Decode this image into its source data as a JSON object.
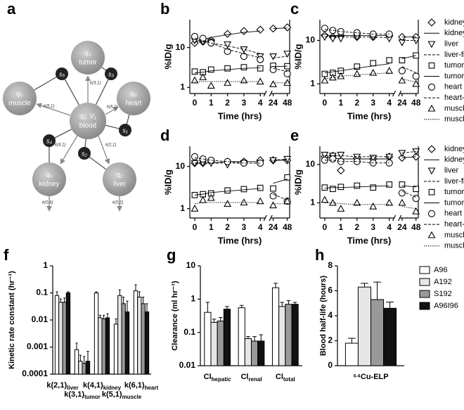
{
  "diagram": {
    "panel": "a",
    "blood": {
      "label": "q₁, V₁",
      "name": "blood"
    },
    "nodes": [
      {
        "label": "q₃",
        "name": "tumor"
      },
      {
        "label": "q₆",
        "name": "heart"
      },
      {
        "label": "q₂",
        "name": "liver"
      },
      {
        "label": "q₄",
        "name": "kidney"
      },
      {
        "label": "q₅",
        "name": "muscle"
      }
    ],
    "switches": [
      "s₃",
      "s₁",
      "s₂",
      "s₄",
      "s₅"
    ],
    "rates": [
      "k(3,1)",
      "k(6,1)",
      "k(2,1)",
      "k(4,1)",
      "k(5,1)",
      "k(0,2)",
      "k(0,4)"
    ]
  },
  "chart_data": [
    {
      "type": "scatter",
      "panel": "b",
      "y_label": "%ID/g",
      "x_label": "Time (hrs)",
      "log_y": true,
      "ylim": [
        0.7,
        50
      ],
      "yticks": [
        1,
        10
      ],
      "xlim_segments": [
        [
          -0.3,
          4.3
        ],
        [
          20,
          52
        ]
      ],
      "xticks": [
        0,
        1,
        2,
        3,
        4,
        24,
        48
      ],
      "legend": false,
      "x": [
        0,
        0.5,
        1,
        2,
        3,
        4,
        24,
        48
      ],
      "series": [
        {
          "name": "kidney",
          "color": "#000",
          "marker": "diamond",
          "values": [
            13,
            14,
            15,
            22,
            26,
            28,
            30,
            32
          ]
        },
        {
          "name": "kidney-fit",
          "color": "#000",
          "line": "solid",
          "values": [
            14,
            16,
            18,
            21,
            24,
            26,
            30,
            31
          ]
        },
        {
          "name": "liver",
          "color": "#000",
          "marker": "triangle-down",
          "values": [
            15,
            14,
            14,
            12,
            9,
            6,
            6,
            7
          ]
        },
        {
          "name": "liver-fit",
          "color": "#000",
          "line": "dashed",
          "values": [
            14,
            14,
            13,
            11,
            9,
            7,
            5.5,
            6
          ]
        },
        {
          "name": "tumor",
          "color": "#000",
          "marker": "square",
          "values": [
            2.5,
            2.4,
            2.8,
            3,
            3.2,
            3,
            3.5,
            3.4
          ]
        },
        {
          "name": "tumor-fit",
          "color": "#000",
          "line": "solid",
          "values": [
            2.3,
            2.4,
            2.6,
            2.8,
            3,
            3.1,
            3.3,
            3.4
          ]
        },
        {
          "name": "heart",
          "color": "#000",
          "marker": "circle",
          "values": [
            19,
            17,
            13,
            8,
            6,
            5,
            2.8,
            2.2
          ]
        },
        {
          "name": "heart-fit",
          "color": "#000",
          "line": "dashed",
          "values": [
            17,
            15,
            13,
            9,
            7,
            5.5,
            3,
            2.5
          ]
        },
        {
          "name": "muscle",
          "color": "#000",
          "marker": "triangle-up",
          "values": [
            1.5,
            1.8,
            1.1,
            1.3,
            1.5,
            1.4,
            1.2,
            1.3
          ]
        },
        {
          "name": "muscle-fit",
          "color": "#000",
          "line": "dotted",
          "values": [
            1.4,
            1.4,
            1.4,
            1.4,
            1.4,
            1.4,
            1.3,
            1.3
          ]
        }
      ]
    },
    {
      "type": "scatter",
      "panel": "c",
      "y_label": "%ID/g",
      "x_label": "Time (hrs)",
      "log_y": true,
      "ylim": [
        0.6,
        30
      ],
      "yticks": [
        1,
        10
      ],
      "xlim_segments": [
        [
          -0.3,
          4.3
        ],
        [
          20,
          52
        ]
      ],
      "xticks": [
        0,
        1,
        2,
        3,
        4,
        24,
        48
      ],
      "legend": true,
      "x": [
        0,
        0.5,
        1,
        2,
        3,
        4,
        24,
        48
      ],
      "series": [
        {
          "name": "kidney",
          "color": "#000",
          "marker": "diamond",
          "values": [
            13,
            12,
            13,
            12,
            12,
            13,
            12,
            12
          ]
        },
        {
          "name": "kidney-fit",
          "color": "#000",
          "line": "solid",
          "values": [
            13,
            13,
            13,
            13,
            13,
            13,
            12,
            12
          ]
        },
        {
          "name": "liver",
          "color": "#000",
          "marker": "triangle-down",
          "values": [
            12,
            11,
            11,
            12,
            12,
            11,
            9,
            10
          ]
        },
        {
          "name": "liver-fit",
          "color": "#000",
          "line": "dashed",
          "values": [
            12,
            12,
            12,
            12,
            12,
            11.5,
            10,
            10
          ]
        },
        {
          "name": "tumor",
          "color": "#000",
          "marker": "square",
          "values": [
            1.7,
            1.8,
            2,
            2.5,
            3,
            3.5,
            3.5,
            4.5
          ]
        },
        {
          "name": "tumor-fit",
          "color": "#000",
          "line": "solid",
          "values": [
            1.8,
            1.9,
            2,
            2.3,
            2.6,
            2.9,
            3.8,
            4.5
          ]
        },
        {
          "name": "heart",
          "color": "#000",
          "marker": "circle",
          "values": [
            19,
            17,
            16,
            15,
            14,
            14,
            2,
            1.5
          ]
        },
        {
          "name": "heart-fit",
          "color": "#000",
          "line": "dashed",
          "values": [
            18,
            17,
            16,
            15,
            14,
            14,
            2.5,
            1.8
          ]
        },
        {
          "name": "muscle",
          "color": "#000",
          "marker": "triangle-up",
          "values": [
            1.2,
            1.4,
            1.5,
            1.7,
            1.8,
            2,
            1.2,
            1
          ]
        },
        {
          "name": "muscle-fit",
          "color": "#000",
          "line": "dotted",
          "values": [
            1.3,
            1.4,
            1.5,
            1.6,
            1.7,
            1.8,
            1.3,
            1.1
          ]
        }
      ]
    },
    {
      "type": "scatter",
      "panel": "d",
      "y_label": "%ID/g",
      "x_label": "Time (hrs)",
      "log_y": true,
      "ylim": [
        0.6,
        30
      ],
      "yticks": [
        1,
        10
      ],
      "xlim_segments": [
        [
          -0.3,
          4.3
        ],
        [
          20,
          52
        ]
      ],
      "xticks": [
        0,
        1,
        2,
        3,
        4,
        24,
        48
      ],
      "legend": false,
      "x": [
        0,
        0.5,
        1,
        2,
        3,
        4,
        24,
        48
      ],
      "series": [
        {
          "name": "kidney",
          "color": "#000",
          "marker": "diamond",
          "values": [
            12,
            12,
            13,
            13,
            13,
            14,
            14,
            14
          ]
        },
        {
          "name": "kidney-fit",
          "color": "#000",
          "line": "solid",
          "values": [
            12,
            12,
            12,
            13,
            13,
            13,
            14,
            14
          ]
        },
        {
          "name": "liver",
          "color": "#000",
          "marker": "triangle-down",
          "values": [
            12,
            12,
            12,
            11,
            12,
            12,
            14,
            15
          ]
        },
        {
          "name": "liver-fit",
          "color": "#000",
          "line": "dashed",
          "values": [
            12,
            12,
            12,
            12,
            12,
            12,
            14,
            15
          ]
        },
        {
          "name": "tumor",
          "color": "#000",
          "marker": "square",
          "values": [
            2.1,
            2.2,
            2.3,
            2.7,
            2.9,
            3.1,
            3,
            5.5
          ]
        },
        {
          "name": "tumor-fit",
          "color": "#000",
          "line": "solid",
          "values": [
            2.1,
            2.2,
            2.4,
            2.6,
            2.8,
            3,
            4,
            5
          ]
        },
        {
          "name": "heart",
          "color": "#000",
          "marker": "circle",
          "values": [
            17,
            15,
            14,
            13,
            12,
            12,
            2,
            1.5
          ]
        },
        {
          "name": "heart-fit",
          "color": "#000",
          "line": "dashed",
          "values": [
            16,
            15,
            14,
            13,
            12,
            12,
            2.2,
            1.6
          ]
        },
        {
          "name": "muscle",
          "color": "#000",
          "marker": "triangle-up",
          "values": [
            1,
            1.6,
            1.8,
            1.3,
            1.4,
            1.5,
            1.2,
            1.5
          ]
        },
        {
          "name": "muscle-fit",
          "color": "#000",
          "line": "dotted",
          "values": [
            1.3,
            1.4,
            1.4,
            1.4,
            1.4,
            1.4,
            1.3,
            1.3
          ]
        }
      ]
    },
    {
      "type": "scatter",
      "panel": "e",
      "y_label": "%ID/g",
      "x_label": "Time (hrs)",
      "log_y": true,
      "ylim": [
        0.4,
        30
      ],
      "yticks": [
        1,
        10
      ],
      "xlim_segments": [
        [
          -0.3,
          4.3
        ],
        [
          20,
          52
        ]
      ],
      "xticks": [
        0,
        1,
        2,
        3,
        4,
        24,
        48
      ],
      "legend": true,
      "x": [
        0,
        0.5,
        1,
        2,
        3,
        4,
        24,
        48
      ],
      "series": [
        {
          "name": "kidney",
          "color": "#000",
          "marker": "diamond",
          "values": [
            16,
            17,
            7,
            15,
            14,
            16,
            15,
            16
          ]
        },
        {
          "name": "kidney-fit",
          "color": "#000",
          "line": "solid",
          "values": [
            15,
            15,
            14,
            14,
            14,
            14,
            15,
            16
          ]
        },
        {
          "name": "liver",
          "color": "#000",
          "marker": "triangle-down",
          "values": [
            18,
            17,
            18,
            16,
            15,
            16,
            20,
            22
          ]
        },
        {
          "name": "liver-fit",
          "color": "#000",
          "line": "dashed",
          "values": [
            17,
            17,
            17,
            16,
            16,
            16,
            20,
            22
          ]
        },
        {
          "name": "tumor",
          "color": "#000",
          "marker": "square",
          "values": [
            2.5,
            2.3,
            2.6,
            2.8,
            2.5,
            3,
            3,
            2.3
          ]
        },
        {
          "name": "tumor-fit",
          "color": "#000",
          "line": "solid",
          "values": [
            2.4,
            2.5,
            2.5,
            2.6,
            2.7,
            2.8,
            2.8,
            2.6
          ]
        },
        {
          "name": "heart",
          "color": "#000",
          "marker": "circle",
          "values": [
            13,
            14,
            12,
            12,
            11,
            11,
            1.8,
            1.3
          ]
        },
        {
          "name": "heart-fit",
          "color": "#000",
          "line": "dashed",
          "values": [
            13,
            13,
            12,
            12,
            11,
            11,
            2,
            1.4
          ]
        },
        {
          "name": "muscle",
          "color": "#000",
          "marker": "triangle-up",
          "values": [
            1.2,
            1,
            0.7,
            1,
            0.8,
            1,
            1,
            0.6
          ]
        },
        {
          "name": "muscle-fit",
          "color": "#000",
          "line": "dotted",
          "values": [
            1,
            1,
            0.95,
            0.9,
            0.9,
            0.9,
            0.8,
            0.7
          ]
        }
      ]
    },
    {
      "type": "bar",
      "panel": "f",
      "y_label": "Kinetic rate constant (hr⁻¹)",
      "log_y": true,
      "ylim": [
        0.0001,
        1
      ],
      "yticks": [
        0.0001,
        0.001,
        0.01,
        0.1,
        1
      ],
      "legend": false,
      "stagger": true,
      "categories": [
        "k(2,1)",
        "k(3,1)",
        "k(4,1)",
        "k(5,1)",
        "k(6,1)"
      ],
      "category_subs": [
        "liver",
        "tumor",
        "kidney",
        "muscle",
        "heart"
      ],
      "series": [
        {
          "name": "A96",
          "color": "#ffffff",
          "values": [
            0.08,
            0.0008,
            0.1,
            0.007,
            0.12
          ],
          "errors": [
            0.03,
            0.0006,
            0.01,
            0.004,
            0.08
          ]
        },
        {
          "name": "A192",
          "color": "#e6e6e6",
          "values": [
            0.045,
            0.0003,
            0.012,
            0.08,
            0.07
          ],
          "errors": [
            0.015,
            0.0002,
            0.003,
            0.05,
            0.04
          ]
        },
        {
          "name": "S192",
          "color": "#999999",
          "values": [
            0.045,
            0.00025,
            0.011,
            0.04,
            0.04
          ],
          "errors": [
            0.02,
            0.0002,
            0.004,
            0.03,
            0.03
          ]
        },
        {
          "name": "A96I96",
          "color": "#111111",
          "values": [
            0.1,
            0.0003,
            0.012,
            0.02,
            0.02
          ],
          "errors": [
            0.01,
            0.0004,
            0.005,
            0.03,
            0.02
          ]
        }
      ]
    },
    {
      "type": "bar",
      "panel": "g",
      "y_label": "Clearance (ml hr⁻¹)",
      "log_y": true,
      "ylim": [
        0.01,
        10
      ],
      "yticks": [
        0.01,
        0.1,
        1,
        10
      ],
      "legend": false,
      "stagger": false,
      "categories": [
        "Cl",
        "Cl",
        "Cl"
      ],
      "category_subs": [
        "hepatic",
        "renal",
        "total"
      ],
      "series": [
        {
          "name": "A96",
          "color": "#ffffff",
          "values": [
            0.4,
            0.55,
            2.2
          ],
          "errors": [
            0.4,
            0.1,
            0.8
          ]
        },
        {
          "name": "A192",
          "color": "#e6e6e6",
          "values": [
            0.2,
            0.065,
            0.6
          ],
          "errors": [
            0.05,
            0.01,
            0.2
          ]
        },
        {
          "name": "S192",
          "color": "#999999",
          "values": [
            0.22,
            0.055,
            0.7
          ],
          "errors": [
            0.06,
            0.02,
            0.2
          ]
        },
        {
          "name": "A96I96",
          "color": "#111111",
          "values": [
            0.5,
            0.055,
            0.7
          ],
          "errors": [
            0.1,
            0.03,
            0.1
          ]
        }
      ]
    },
    {
      "type": "bar",
      "panel": "h",
      "y_label": "Blood half-life (hours)",
      "log_y": false,
      "ylim": [
        0,
        8
      ],
      "yticks": [
        0,
        2,
        4,
        6,
        8
      ],
      "legend": true,
      "stagger": false,
      "categories": [
        "⁶⁴Cu-ELP"
      ],
      "series": [
        {
          "name": "A96",
          "color": "#ffffff",
          "values": [
            1.8
          ],
          "errors": [
            0.4
          ]
        },
        {
          "name": "A192",
          "color": "#e6e6e6",
          "values": [
            6.3
          ],
          "errors": [
            0.3
          ]
        },
        {
          "name": "S192",
          "color": "#999999",
          "values": [
            5.3
          ],
          "errors": [
            1.4
          ]
        },
        {
          "name": "A96I96",
          "color": "#111111",
          "values": [
            4.6
          ],
          "errors": [
            0.5
          ]
        }
      ]
    }
  ]
}
